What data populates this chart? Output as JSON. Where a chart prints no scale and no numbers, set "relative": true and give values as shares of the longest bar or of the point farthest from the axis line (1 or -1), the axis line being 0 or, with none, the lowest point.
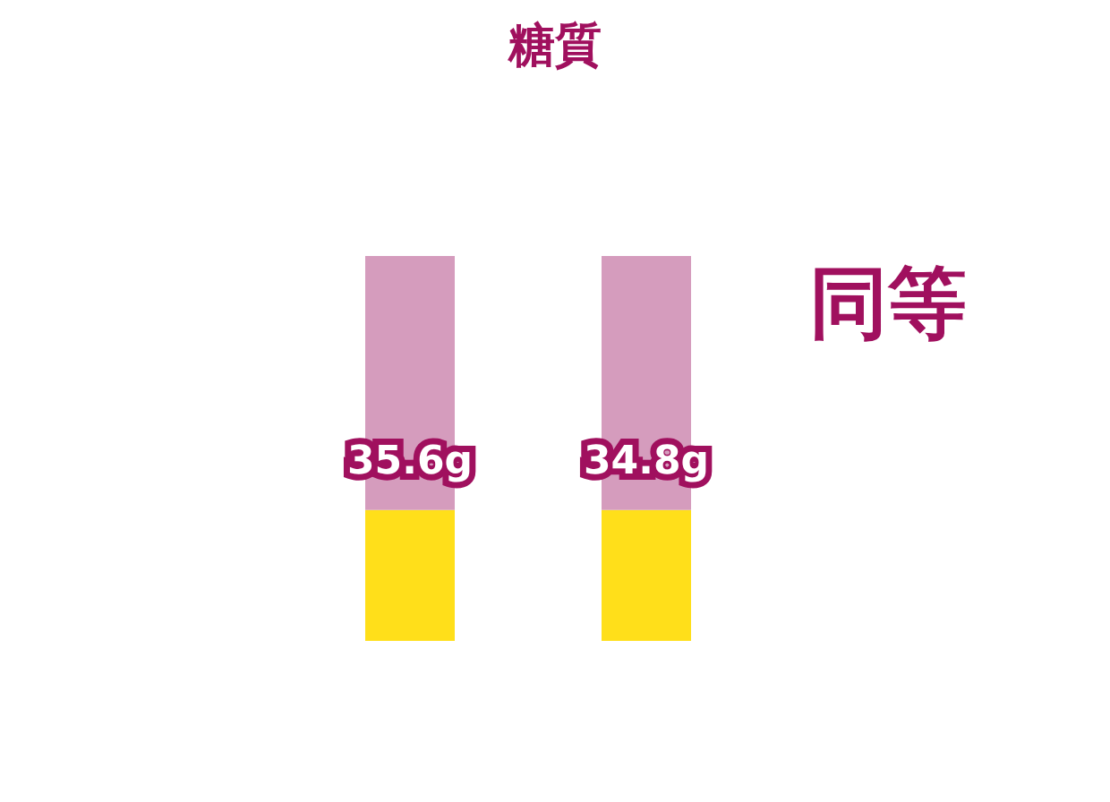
{
  "chart_data": {
    "type": "bar",
    "title": "糖質",
    "categories": [
      null,
      null
    ],
    "stacked": true,
    "relative": true,
    "series": [
      {
        "color": "#ffdf1a",
        "values": [
          0.34,
          0.34
        ]
      },
      {
        "color": "#d59cbd",
        "values": [
          0.66,
          0.66
        ]
      }
    ],
    "annotations": [
      "35.6g",
      "34.8g",
      "同等"
    ]
  }
}
